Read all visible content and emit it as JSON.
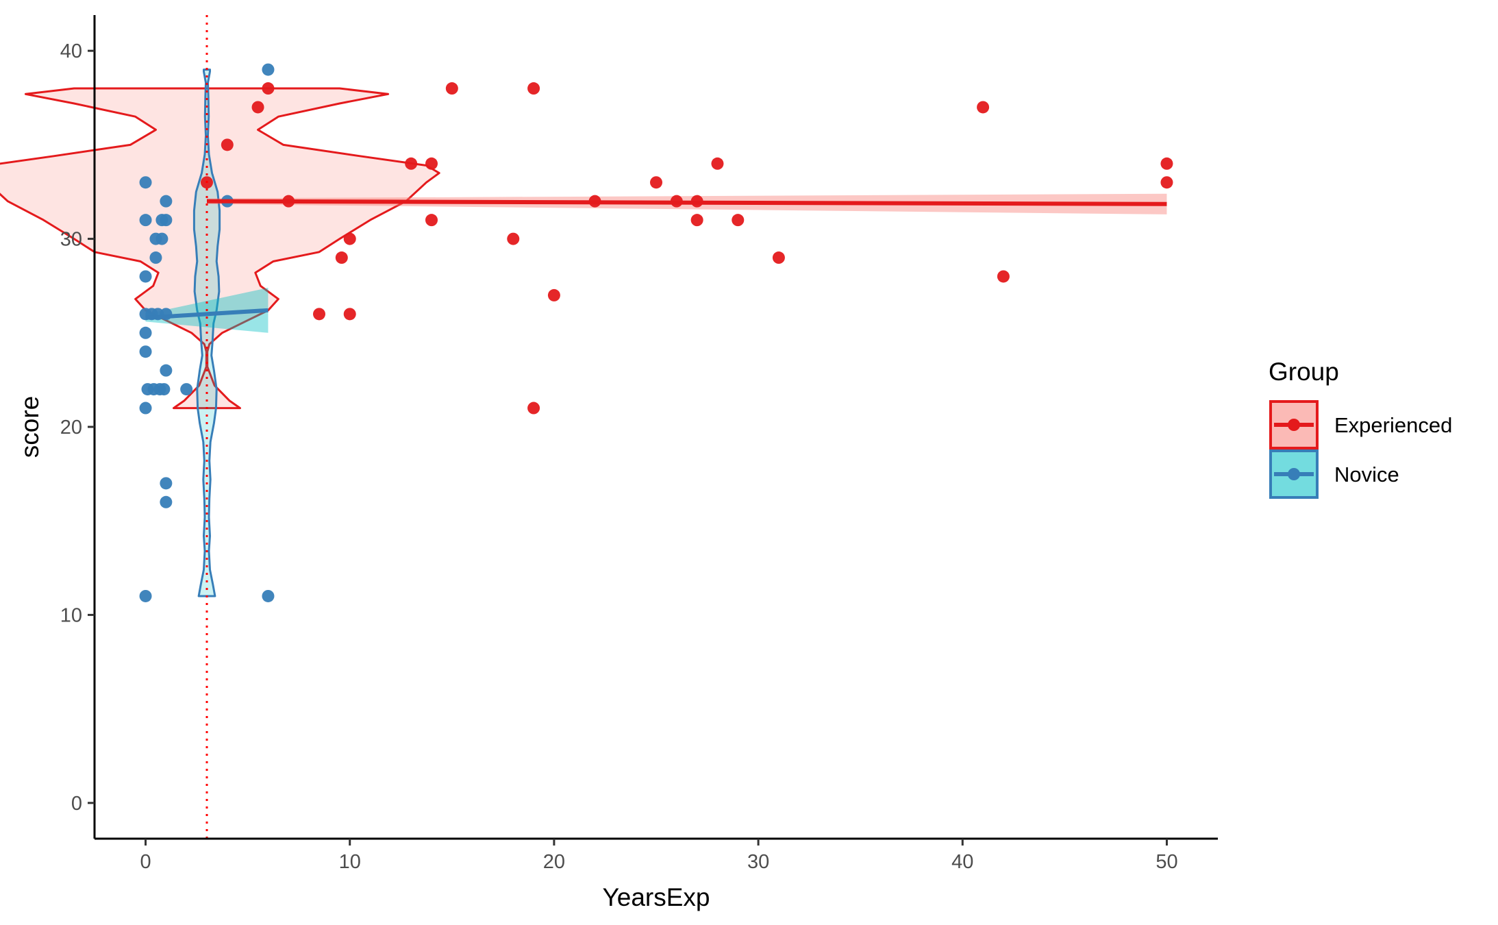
{
  "chart_data": {
    "type": "scatter",
    "xlabel": "YearsExp",
    "ylabel": "score",
    "xlim": [
      -2.5,
      52.5
    ],
    "ylim": [
      -1.9,
      41.9
    ],
    "x_ticks": [
      0,
      10,
      20,
      30,
      40,
      50
    ],
    "y_ticks": [
      0,
      10,
      20,
      30,
      40
    ],
    "grid": false,
    "reference_line": {
      "x": 3,
      "style": "dotted",
      "color": "#FF0000"
    },
    "legend": {
      "title": "Group",
      "placement": "right",
      "entries": [
        {
          "label": "Experienced",
          "color": "#E41A1C",
          "fill": "#F8766D"
        },
        {
          "label": "Novice",
          "color": "#377EB8",
          "fill": "#00BFC4"
        }
      ]
    },
    "series": [
      {
        "name": "Experienced",
        "color": "#E41A1C",
        "points": [
          {
            "x": 3,
            "y": 33
          },
          {
            "x": 4,
            "y": 35
          },
          {
            "x": 5.5,
            "y": 37
          },
          {
            "x": 6,
            "y": 38
          },
          {
            "x": 7,
            "y": 32
          },
          {
            "x": 8.5,
            "y": 26
          },
          {
            "x": 9.6,
            "y": 29
          },
          {
            "x": 10,
            "y": 30
          },
          {
            "x": 10,
            "y": 26
          },
          {
            "x": 13,
            "y": 34
          },
          {
            "x": 14,
            "y": 34
          },
          {
            "x": 14,
            "y": 31
          },
          {
            "x": 15,
            "y": 38
          },
          {
            "x": 18,
            "y": 30
          },
          {
            "x": 19,
            "y": 38
          },
          {
            "x": 19,
            "y": 21
          },
          {
            "x": 20,
            "y": 27
          },
          {
            "x": 22,
            "y": 32
          },
          {
            "x": 25,
            "y": 33
          },
          {
            "x": 26,
            "y": 32
          },
          {
            "x": 27,
            "y": 32
          },
          {
            "x": 27,
            "y": 31
          },
          {
            "x": 28,
            "y": 34
          },
          {
            "x": 29,
            "y": 31
          },
          {
            "x": 31,
            "y": 29
          },
          {
            "x": 41,
            "y": 37
          },
          {
            "x": 42,
            "y": 28
          },
          {
            "x": 50,
            "y": 34
          },
          {
            "x": 50,
            "y": 33
          }
        ],
        "trend": {
          "x0": 3,
          "y0": 32.0,
          "x1": 50,
          "y1": 31.85
        },
        "band": {
          "lower": [
            31.85,
            31.3
          ],
          "upper": [
            32.15,
            32.4
          ]
        },
        "violin": {
          "center_x": 3,
          "profile": [
            {
              "y": 21,
              "w": 6.5
            },
            {
              "y": 21.4,
              "w": 4.4
            },
            {
              "y": 22.2,
              "w": 1.5
            },
            {
              "y": 23.2,
              "w": 0.1
            },
            {
              "y": 24,
              "w": 0.1
            },
            {
              "y": 24.4,
              "w": 0.5
            },
            {
              "y": 25,
              "w": 3.0
            },
            {
              "y": 25.6,
              "w": 7.5
            },
            {
              "y": 26.2,
              "w": 12
            },
            {
              "y": 26.8,
              "w": 14
            },
            {
              "y": 27.5,
              "w": 10.5
            },
            {
              "y": 28.2,
              "w": 9.5
            },
            {
              "y": 28.8,
              "w": 13
            },
            {
              "y": 29.3,
              "w": 22
            },
            {
              "y": 30,
              "w": 26
            },
            {
              "y": 31,
              "w": 32
            },
            {
              "y": 32,
              "w": 39
            },
            {
              "y": 33,
              "w": 43
            },
            {
              "y": 33.5,
              "w": 45.5
            },
            {
              "y": 33.9,
              "w": 43
            },
            {
              "y": 34.4,
              "w": 30
            },
            {
              "y": 35,
              "w": 15
            },
            {
              "y": 35.8,
              "w": 10
            },
            {
              "y": 36.5,
              "w": 14
            },
            {
              "y": 37.2,
              "w": 26
            },
            {
              "y": 37.7,
              "w": 35.5
            },
            {
              "y": 38,
              "w": 26
            }
          ]
        }
      },
      {
        "name": "Novice",
        "color": "#377EB8",
        "points": [
          {
            "x": 0,
            "y": 33
          },
          {
            "x": 0,
            "y": 31
          },
          {
            "x": 0,
            "y": 28
          },
          {
            "x": 0,
            "y": 26
          },
          {
            "x": 0,
            "y": 25
          },
          {
            "x": 0,
            "y": 24
          },
          {
            "x": 0,
            "y": 21
          },
          {
            "x": 0,
            "y": 11
          },
          {
            "x": 0.1,
            "y": 22
          },
          {
            "x": 0.3,
            "y": 26
          },
          {
            "x": 0.4,
            "y": 22
          },
          {
            "x": 0.5,
            "y": 30
          },
          {
            "x": 0.5,
            "y": 29
          },
          {
            "x": 0.6,
            "y": 26
          },
          {
            "x": 0.7,
            "y": 22
          },
          {
            "x": 0.8,
            "y": 31
          },
          {
            "x": 0.8,
            "y": 30
          },
          {
            "x": 0.9,
            "y": 22
          },
          {
            "x": 1,
            "y": 32
          },
          {
            "x": 1,
            "y": 31
          },
          {
            "x": 1,
            "y": 26
          },
          {
            "x": 1,
            "y": 23
          },
          {
            "x": 1,
            "y": 17
          },
          {
            "x": 1,
            "y": 16
          },
          {
            "x": 2,
            "y": 22
          },
          {
            "x": 4,
            "y": 32
          },
          {
            "x": 6,
            "y": 39
          },
          {
            "x": 6,
            "y": 11
          }
        ],
        "trend": {
          "x0": 0,
          "y0": 25.8,
          "x1": 6,
          "y1": 26.2
        },
        "band": {
          "lower": [
            25.6,
            25.0
          ],
          "upper": [
            26.0,
            27.4
          ]
        },
        "violin": {
          "center_x": 3,
          "profile": [
            {
              "y": 11,
              "w": 0.8
            },
            {
              "y": 11.6,
              "w": 0.6
            },
            {
              "y": 12.4,
              "w": 0.3
            },
            {
              "y": 13.4,
              "w": 0.2
            },
            {
              "y": 14.2,
              "w": 0.3
            },
            {
              "y": 15.2,
              "w": 0.2
            },
            {
              "y": 16.2,
              "w": 0.25
            },
            {
              "y": 17.2,
              "w": 0.35
            },
            {
              "y": 18.2,
              "w": 0.25
            },
            {
              "y": 19.2,
              "w": 0.35
            },
            {
              "y": 20.2,
              "w": 0.7
            },
            {
              "y": 21,
              "w": 0.9
            },
            {
              "y": 22,
              "w": 0.95
            },
            {
              "y": 23,
              "w": 0.7
            },
            {
              "y": 23.8,
              "w": 0.45
            },
            {
              "y": 24.5,
              "w": 0.55
            },
            {
              "y": 25.5,
              "w": 0.65
            },
            {
              "y": 26.2,
              "w": 0.95
            },
            {
              "y": 27.2,
              "w": 1.2
            },
            {
              "y": 28,
              "w": 1.15
            },
            {
              "y": 28.8,
              "w": 0.95
            },
            {
              "y": 29.6,
              "w": 1.05
            },
            {
              "y": 30.5,
              "w": 1.25
            },
            {
              "y": 31.5,
              "w": 1.25
            },
            {
              "y": 32.5,
              "w": 1.05
            },
            {
              "y": 33.5,
              "w": 0.5
            },
            {
              "y": 34.5,
              "w": 0.2
            },
            {
              "y": 35.5,
              "w": 0.1
            },
            {
              "y": 36.5,
              "w": 0.18
            },
            {
              "y": 37.5,
              "w": 0.15
            },
            {
              "y": 38.3,
              "w": 0.1
            },
            {
              "y": 38.9,
              "w": 0.3
            },
            {
              "y": 39,
              "w": 0.3
            }
          ]
        }
      }
    ]
  }
}
